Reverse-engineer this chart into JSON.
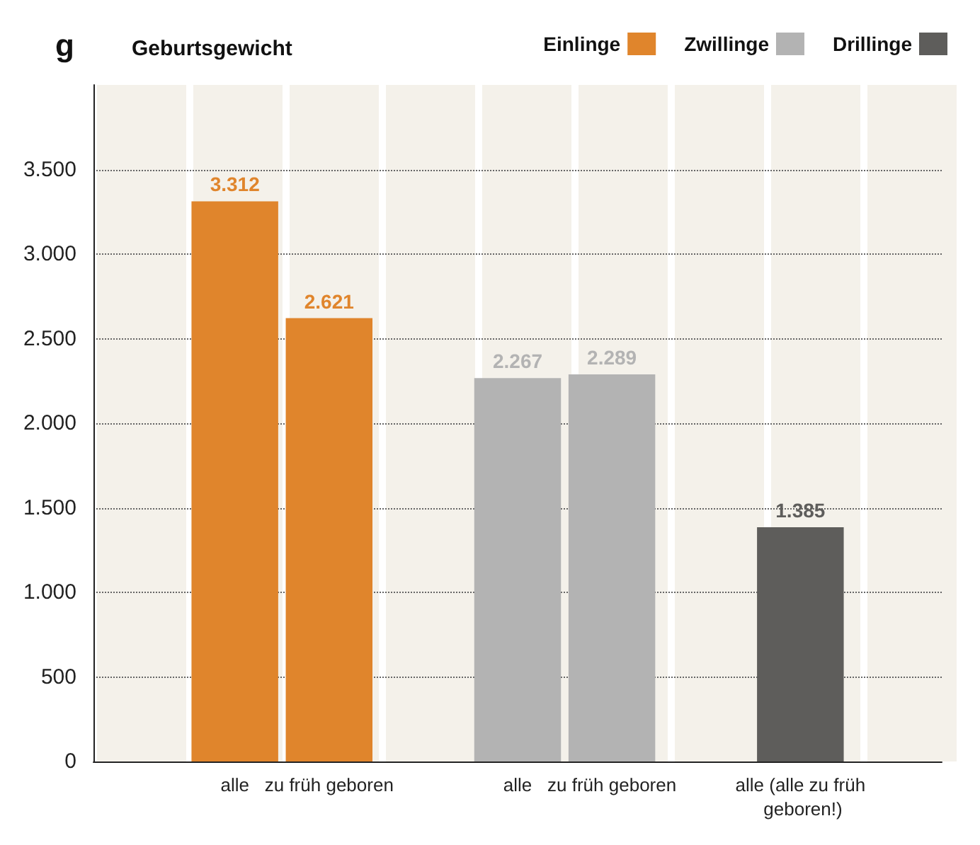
{
  "chart_data": {
    "type": "bar",
    "title": "Geburtsgewicht",
    "ylabel": "g",
    "stacked": true,
    "categories": [
      null,
      "alle",
      "zu früh geboren",
      null,
      "alle",
      "zu früh geboren",
      null,
      "alle (alle zu früh geboren!)",
      null
    ],
    "series": [
      {
        "name": "Einlinge",
        "color": "#e0852c",
        "values": [
          null,
          3312,
          2621,
          null,
          null,
          null,
          null,
          null,
          null
        ],
        "value_labels": [
          null,
          "3.312",
          "2.621",
          null,
          null,
          null,
          null,
          null,
          null
        ]
      },
      {
        "name": "Zwillinge",
        "color": "#b3b3b3",
        "values": [
          null,
          null,
          null,
          null,
          2267,
          2289,
          null,
          null,
          null
        ],
        "value_labels": [
          null,
          null,
          null,
          null,
          "2.267",
          "2.289",
          null,
          null,
          null
        ]
      },
      {
        "name": "Drillinge",
        "color": "#5e5d5b",
        "values": [
          null,
          null,
          null,
          null,
          null,
          null,
          null,
          1385,
          null
        ],
        "value_labels": [
          null,
          null,
          null,
          null,
          null,
          null,
          null,
          "1.385",
          null
        ]
      }
    ],
    "ylim": [
      0,
      4000
    ],
    "yticks": [
      {
        "value": 0,
        "label": "0"
      },
      {
        "value": 500,
        "label": "500"
      },
      {
        "value": 1000,
        "label": "1.000"
      },
      {
        "value": 1500,
        "label": "1.500"
      },
      {
        "value": 2000,
        "label": "2.000"
      },
      {
        "value": 2500,
        "label": "2.500"
      },
      {
        "value": 3000,
        "label": "3.000"
      },
      {
        "value": 3500,
        "label": "3.500"
      }
    ],
    "grid": "y",
    "legend": "top right"
  }
}
